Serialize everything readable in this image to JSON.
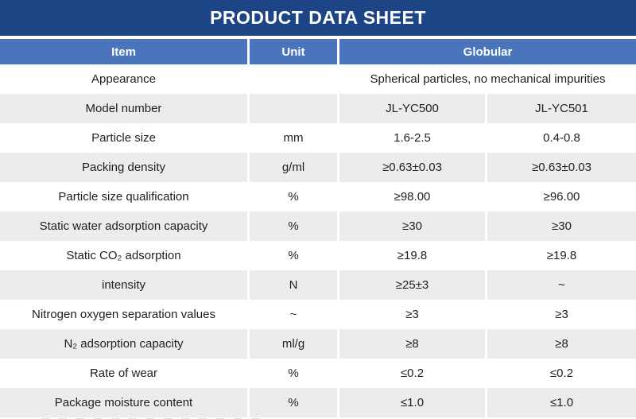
{
  "title": "PRODUCT DATA SHEET",
  "table": {
    "headers": {
      "item": "Item",
      "unit": "Unit",
      "globular": "Globular"
    },
    "rows": [
      {
        "item": "Appearance",
        "unit": "",
        "values": [
          "Spherical particles, no mechanical impurities"
        ]
      },
      {
        "item": "Model number",
        "unit": "",
        "values": [
          "JL-YC500",
          "JL-YC501"
        ]
      },
      {
        "item": "Particle size",
        "unit": "mm",
        "values": [
          "1.6-2.5",
          "0.4-0.8"
        ]
      },
      {
        "item": "Packing density",
        "unit": "g/ml",
        "values": [
          "≥0.63±0.03",
          "≥0.63±0.03"
        ]
      },
      {
        "item": "Particle size qualification",
        "unit": "%",
        "values": [
          "≥98.00",
          "≥96.00"
        ]
      },
      {
        "item": "Static water adsorption capacity",
        "unit": "%",
        "values": [
          "≥30",
          "≥30"
        ]
      },
      {
        "item": "Static CO₂ adsorption",
        "unit": "%",
        "values": [
          "≥19.8",
          "≥19.8"
        ]
      },
      {
        "item": "intensity",
        "unit": "N",
        "values": [
          "≥25±3",
          "~"
        ]
      },
      {
        "item": "Nitrogen oxygen separation values",
        "unit": "~",
        "values": [
          "≥3",
          "≥3"
        ]
      },
      {
        "item": "N₂ adsorption capacity",
        "unit": "ml/g",
        "values": [
          "≥8",
          "≥8"
        ]
      },
      {
        "item": "Rate of wear",
        "unit": "%",
        "values": [
          "≤0.2",
          "≤0.2"
        ]
      },
      {
        "item": "Package moisture content",
        "unit": "%",
        "values": [
          "≤1.0",
          "≤1.0"
        ]
      }
    ]
  },
  "colors": {
    "title_bar_bg": "#1d4484",
    "header_bg": "#4a75bc",
    "stripe_bg": "#ececec",
    "text": "#1f1f1f"
  }
}
